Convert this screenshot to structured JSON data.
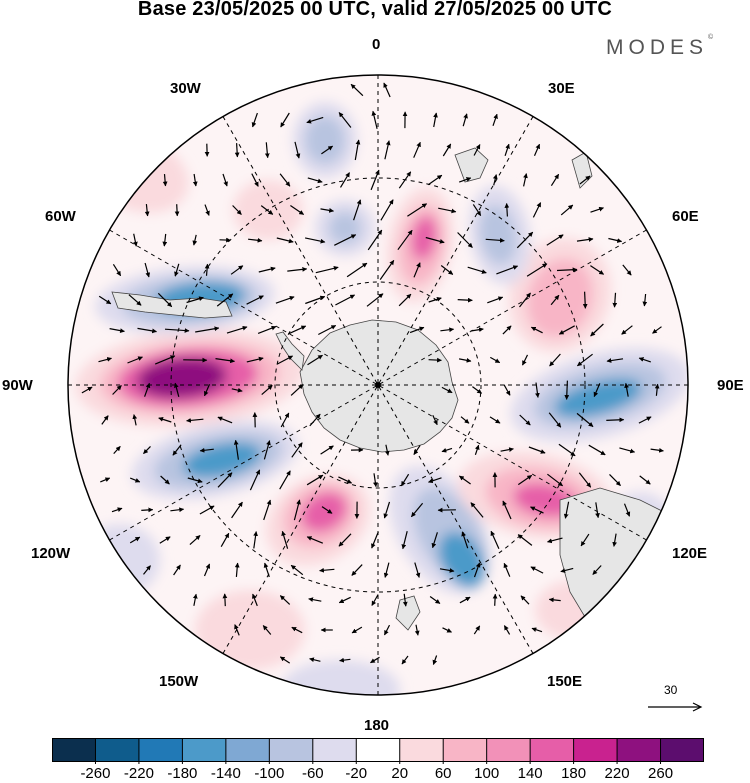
{
  "title": "Base 23/05/2025 00 UTC, valid 27/05/2025 00 UTC",
  "brand": {
    "name": "MODES",
    "mark": "©"
  },
  "longitude_labels": {
    "n0": "0",
    "n30e": "30E",
    "n60e": "60E",
    "n90e": "90E",
    "n120e": "120E",
    "n150e": "150E",
    "n180": "180",
    "n150w": "150W",
    "n120w": "120W",
    "n90w": "90W",
    "n60w": "60W",
    "n30w": "30W"
  },
  "reference_vector": {
    "value": "30"
  },
  "colorbar": {
    "ticks": [
      "-260",
      "-220",
      "-180",
      "-140",
      "-100",
      "-60",
      "-20",
      "20",
      "60",
      "100",
      "140",
      "180",
      "220",
      "260"
    ],
    "colors": [
      "#0b2f4e",
      "#0f5c8c",
      "#2179b6",
      "#4c9ac9",
      "#7fa8d3",
      "#b8c4e0",
      "#dedcee",
      "#ffffff",
      "#fadade",
      "#f8b5c6",
      "#f291b8",
      "#e65ea8",
      "#c9228f",
      "#8e117f",
      "#5c0d6e"
    ]
  },
  "anomaly_colors": {
    "land": "#e6e6e6",
    "positive_weak": "#fadade",
    "positive_mid": "#f8b5c6",
    "positive_strong": "#e65ea8",
    "positive_max": "#8e117f",
    "negative_weak": "#dedcee",
    "negative_mid": "#b8c4e0",
    "negative_strong": "#4c9ac9",
    "negative_max": "#2179b6"
  }
}
